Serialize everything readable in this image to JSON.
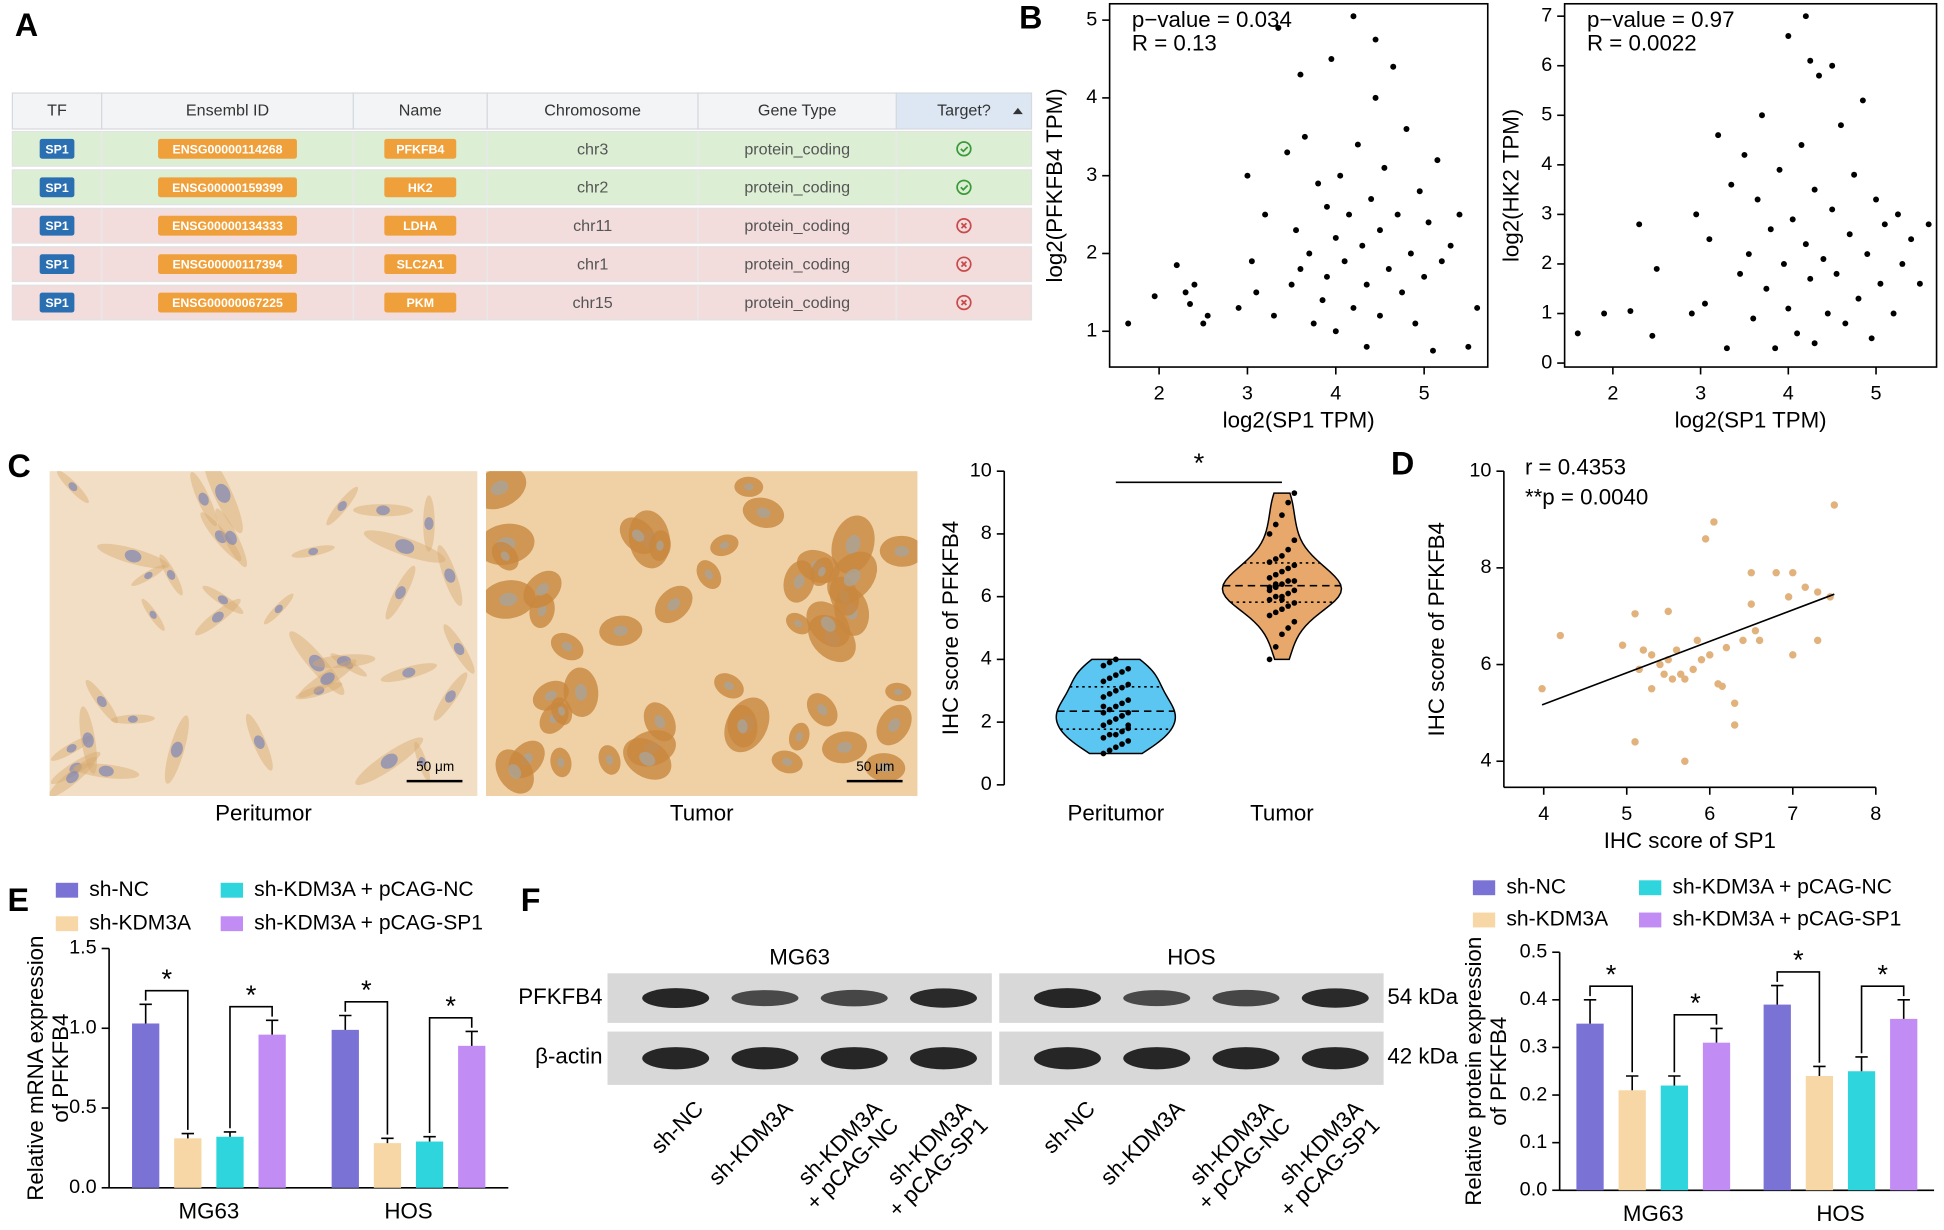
{
  "panel_labels": [
    "A",
    "B",
    "C",
    "D",
    "E",
    "F"
  ],
  "table": {
    "headers": [
      "TF",
      "Ensembl ID",
      "Name",
      "Chromosome",
      "Gene Type",
      "Target?"
    ],
    "rows": [
      [
        "SP1",
        "ENSG00000114268",
        "PFKFB4",
        "chr3",
        "protein_coding"
      ],
      [
        "SP1",
        "ENSG00000159399",
        "HK2",
        "chr2",
        "protein_coding"
      ],
      [
        "SP1",
        "ENSG00000134333",
        "LDHA",
        "chr11",
        "protein_coding"
      ],
      [
        "SP1",
        "ENSG00000117394",
        "SLC2A1",
        "chr1",
        "protein_coding"
      ],
      [
        "SP1",
        "ENSG00000067225",
        "PKM",
        "chr15",
        "protein_coding"
      ]
    ],
    "targets": [
      true,
      true,
      false,
      false,
      false
    ]
  },
  "micrographs": {
    "captions": [
      "Peritumor",
      "Tumor"
    ],
    "scale_bar": "50 μm"
  },
  "blot": {
    "groups": [
      "MG63",
      "HOS"
    ],
    "lanes": [
      [
        "sh-NC"
      ],
      [
        "sh-KDM3A"
      ],
      [
        "sh-KDM3A",
        "+ pCAG-NC"
      ],
      [
        "sh-KDM3A",
        "+ pCAG-SP1"
      ]
    ],
    "bands": [
      {
        "name": "PFKFB4",
        "size": "54 kDa"
      },
      {
        "name": "β-actin",
        "size": "42 kDa"
      }
    ]
  },
  "chart_data": [
    {
      "type": "scatter",
      "xlabel": "log2(SP1 TPM)",
      "ylabel": "log2(PFKFB4 TPM)",
      "annotations": [
        "p−value = 0.034",
        "R = 0.13"
      ],
      "color": "#000000",
      "frame": true,
      "x": [
        1.65,
        1.95,
        2.2,
        2.3,
        2.35,
        2.4,
        2.5,
        2.55,
        2.9,
        3.0,
        3.05,
        3.1,
        3.2,
        3.3,
        3.35,
        3.45,
        3.5,
        3.55,
        3.6,
        3.6,
        3.65,
        3.7,
        3.75,
        3.8,
        3.85,
        3.9,
        3.9,
        3.95,
        4.0,
        4.0,
        4.05,
        4.1,
        4.15,
        4.2,
        4.25,
        4.3,
        4.35,
        4.35,
        4.4,
        4.45,
        4.5,
        4.5,
        4.55,
        4.6,
        4.65,
        4.7,
        4.75,
        4.8,
        4.85,
        4.9,
        4.95,
        5.0,
        5.05,
        5.1,
        5.15,
        5.2,
        5.3,
        5.4,
        5.5,
        5.6,
        4.2,
        4.45
      ],
      "y": [
        1.1,
        1.45,
        1.85,
        1.5,
        1.35,
        1.6,
        1.1,
        1.2,
        1.3,
        3.0,
        1.9,
        1.5,
        2.5,
        1.2,
        4.9,
        3.3,
        1.6,
        2.3,
        4.3,
        1.8,
        3.5,
        2.0,
        1.1,
        2.9,
        1.4,
        1.7,
        2.6,
        4.5,
        2.2,
        1.0,
        3.0,
        1.9,
        2.5,
        1.3,
        3.4,
        2.1,
        0.8,
        1.6,
        2.7,
        4.0,
        1.2,
        2.3,
        3.1,
        1.8,
        4.4,
        2.5,
        1.5,
        3.6,
        2.0,
        1.1,
        2.8,
        1.7,
        2.4,
        0.75,
        3.2,
        1.9,
        2.1,
        2.5,
        0.8,
        1.3,
        5.05,
        4.75
      ],
      "xlim": [
        1.44,
        5.72
      ],
      "ylim": [
        0.54,
        5.21
      ],
      "xticks": [
        2,
        3,
        4,
        5
      ],
      "yticks": [
        1,
        2,
        3,
        4,
        5
      ]
    },
    {
      "type": "scatter",
      "xlabel": "log2(SP1 TPM)",
      "ylabel": "log2(HK2 TPM)",
      "annotations": [
        "p−value = 0.97",
        "R = 0.0022"
      ],
      "color": "#000000",
      "frame": true,
      "x": [
        1.6,
        1.9,
        2.2,
        2.3,
        2.45,
        2.5,
        2.9,
        2.95,
        3.05,
        3.1,
        3.2,
        3.3,
        3.35,
        3.45,
        3.5,
        3.55,
        3.6,
        3.65,
        3.7,
        3.75,
        3.8,
        3.85,
        3.9,
        3.95,
        4.0,
        4.0,
        4.05,
        4.1,
        4.15,
        4.2,
        4.25,
        4.3,
        4.3,
        4.35,
        4.4,
        4.45,
        4.5,
        4.5,
        4.55,
        4.6,
        4.65,
        4.7,
        4.75,
        4.8,
        4.85,
        4.9,
        4.95,
        5.0,
        5.05,
        5.1,
        5.2,
        5.25,
        5.3,
        5.4,
        5.5,
        5.6,
        4.2,
        4.25
      ],
      "y": [
        0.6,
        1.0,
        1.05,
        2.8,
        0.55,
        1.9,
        1.0,
        3.0,
        1.2,
        2.5,
        4.6,
        0.3,
        3.6,
        1.8,
        4.2,
        2.2,
        0.9,
        3.3,
        5.0,
        1.5,
        2.7,
        0.3,
        3.9,
        2.0,
        6.6,
        1.1,
        2.9,
        0.6,
        4.4,
        2.4,
        1.7,
        3.5,
        0.4,
        5.8,
        2.1,
        1.0,
        3.1,
        6.0,
        1.8,
        4.8,
        0.8,
        2.6,
        3.8,
        1.3,
        5.3,
        2.2,
        0.5,
        3.3,
        1.6,
        2.8,
        1.0,
        3.0,
        2.0,
        2.5,
        1.6,
        2.8,
        7.0,
        6.1
      ],
      "xlim": [
        1.45,
        5.69
      ],
      "ylim": [
        -0.08,
        7.25
      ],
      "xticks": [
        2,
        3,
        4,
        5
      ],
      "yticks": [
        0,
        1,
        2,
        3,
        4,
        5,
        6,
        7
      ]
    },
    {
      "type": "violin",
      "ylabel": "IHC score of PFKFB4",
      "categories": [
        "Peritumor",
        "Tumor"
      ],
      "colors": [
        "#5cc6f2",
        "#e8a86c"
      ],
      "values": [
        [
          1.0,
          1.1,
          1.2,
          1.3,
          1.4,
          1.5,
          1.6,
          1.6,
          1.7,
          1.8,
          1.9,
          2.0,
          2.1,
          2.2,
          2.3,
          2.3,
          2.4,
          2.5,
          2.6,
          2.7,
          2.8,
          2.9,
          3.0,
          3.1,
          3.2,
          3.3,
          3.4,
          3.5,
          3.6,
          3.7,
          3.8,
          3.9,
          4.0,
          2.2,
          1.9,
          2.5
        ],
        [
          4.0,
          4.4,
          4.8,
          5.0,
          5.2,
          5.4,
          5.5,
          5.6,
          5.7,
          5.8,
          5.9,
          6.0,
          6.0,
          6.1,
          6.2,
          6.3,
          6.3,
          6.4,
          6.5,
          6.5,
          6.6,
          6.7,
          6.8,
          6.9,
          7.0,
          7.1,
          7.2,
          7.3,
          7.5,
          7.8,
          8.0,
          8.3,
          8.6,
          9.0,
          9.3,
          6.2,
          6.4,
          5.9
        ]
      ],
      "significance": [
        {
          "from": 0,
          "to": 1,
          "label": "*"
        }
      ],
      "ylim": [
        0,
        10
      ],
      "yticks": [
        0,
        2,
        4,
        6,
        8,
        10
      ]
    },
    {
      "type": "scatter",
      "xlabel": "IHC score of SP1",
      "ylabel": "IHC score of PFKFB4",
      "annotations": [
        "r = 0.4353",
        "**p = 0.0040"
      ],
      "color": "#e2b27d",
      "frame": false,
      "fit_line": true,
      "x": [
        3.98,
        4.2,
        4.95,
        5.1,
        5.1,
        5.15,
        5.2,
        5.3,
        5.3,
        5.4,
        5.45,
        5.5,
        5.5,
        5.55,
        5.6,
        5.65,
        5.7,
        5.7,
        5.8,
        5.85,
        5.9,
        5.95,
        6.0,
        6.05,
        6.1,
        6.15,
        6.2,
        6.3,
        6.3,
        6.4,
        6.5,
        6.5,
        6.55,
        6.6,
        6.8,
        6.95,
        7.0,
        7.0,
        7.15,
        7.3,
        7.3,
        7.45,
        7.5
      ],
      "y": [
        5.5,
        6.6,
        6.4,
        7.05,
        4.4,
        5.9,
        6.3,
        6.2,
        5.5,
        6.0,
        5.8,
        7.1,
        6.1,
        5.7,
        6.3,
        5.8,
        5.7,
        4.0,
        5.9,
        6.5,
        6.1,
        8.6,
        6.2,
        8.95,
        5.6,
        5.55,
        6.35,
        4.75,
        5.2,
        6.5,
        7.25,
        7.9,
        6.7,
        6.5,
        7.9,
        7.4,
        6.2,
        7.9,
        7.6,
        6.5,
        7.5,
        7.4,
        9.3
      ],
      "xlim": [
        3.52,
        8
      ],
      "ylim": [
        3.46,
        10
      ],
      "xticks": [
        4,
        5,
        6,
        7,
        8
      ],
      "yticks": [
        4,
        6,
        8,
        10
      ]
    },
    {
      "type": "bar",
      "ylabel": [
        "Relative mRNA expression",
        "of PFKFB4"
      ],
      "categories": [
        "MG63",
        "HOS"
      ],
      "series": [
        {
          "name": "sh-NC",
          "color": "#7b72d6",
          "values": [
            1.03,
            0.99
          ],
          "errors": [
            0.12,
            0.09
          ]
        },
        {
          "name": "sh-KDM3A",
          "color": "#f7d7a5",
          "values": [
            0.31,
            0.28
          ],
          "errors": [
            0.03,
            0.03
          ]
        },
        {
          "name": "sh-KDM3A + pCAG-NC",
          "color": "#2fd5dc",
          "values": [
            0.32,
            0.29
          ],
          "errors": [
            0.03,
            0.03
          ]
        },
        {
          "name": "sh-KDM3A + pCAG-SP1",
          "color": "#c18df5",
          "values": [
            0.96,
            0.89
          ],
          "errors": [
            0.09,
            0.09
          ]
        }
      ],
      "significance": [
        {
          "category": 0,
          "from": 0,
          "to": 1,
          "label": "*"
        },
        {
          "category": 0,
          "from": 2,
          "to": 3,
          "label": "*"
        },
        {
          "category": 1,
          "from": 0,
          "to": 1,
          "label": "*"
        },
        {
          "category": 1,
          "from": 2,
          "to": 3,
          "label": "*"
        }
      ],
      "legend": "top",
      "ylim": [
        0,
        1.5
      ],
      "yticks": [
        {
          "value": 0,
          "label": "0.0"
        },
        0.5,
        {
          "value": 1,
          "label": "1.0"
        },
        1.5
      ]
    },
    {
      "type": "bar",
      "ylabel": [
        "Relative protein expression",
        "of PFKFB4"
      ],
      "categories": [
        "MG63",
        "HOS"
      ],
      "series": [
        {
          "name": "sh-NC",
          "color": "#7b72d6",
          "values": [
            0.35,
            0.39
          ],
          "errors": [
            0.05,
            0.04
          ]
        },
        {
          "name": "sh-KDM3A",
          "color": "#f7d7a5",
          "values": [
            0.21,
            0.24
          ],
          "errors": [
            0.03,
            0.02
          ]
        },
        {
          "name": "sh-KDM3A + pCAG-NC",
          "color": "#2fd5dc",
          "values": [
            0.22,
            0.25
          ],
          "errors": [
            0.02,
            0.03
          ]
        },
        {
          "name": "sh-KDM3A + pCAG-SP1",
          "color": "#c18df5",
          "values": [
            0.31,
            0.36
          ],
          "errors": [
            0.03,
            0.04
          ]
        }
      ],
      "significance": [
        {
          "category": 0,
          "from": 0,
          "to": 1,
          "label": "*"
        },
        {
          "category": 0,
          "from": 2,
          "to": 3,
          "label": "*"
        },
        {
          "category": 1,
          "from": 0,
          "to": 1,
          "label": "*"
        },
        {
          "category": 1,
          "from": 2,
          "to": 3,
          "label": "*"
        }
      ],
      "legend": "top",
      "ylim": [
        0,
        0.5
      ],
      "yticks": [
        {
          "value": 0,
          "label": "0.0"
        },
        0.1,
        0.2,
        0.3,
        0.4,
        0.5
      ]
    }
  ]
}
